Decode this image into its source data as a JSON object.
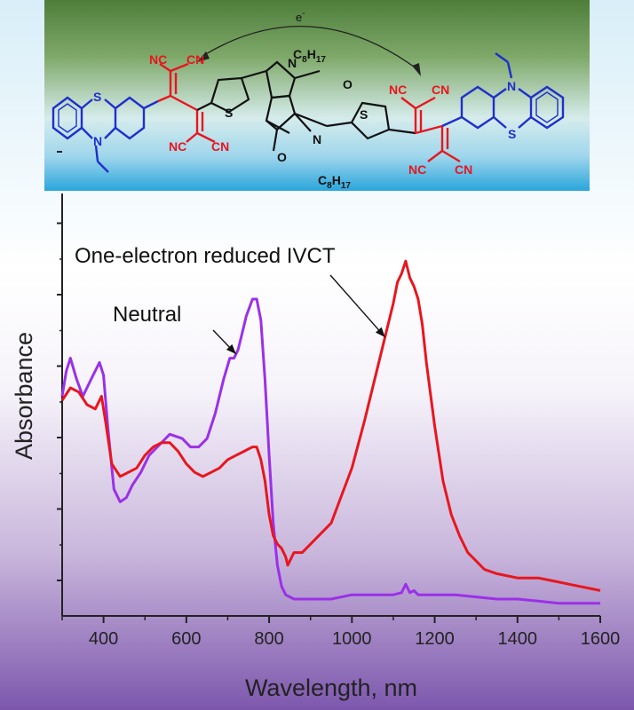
{
  "molecule": {
    "electron_label": "e",
    "electron_charge": "-",
    "labels_red": [
      "NC",
      "CN",
      "NC",
      "CN",
      "NC",
      "CN",
      "NC",
      "CN"
    ],
    "labels_black": [
      "N",
      "C",
      "8",
      "H",
      "17",
      "S",
      "S",
      "N",
      "C",
      "8",
      "H",
      "17",
      "O",
      "O"
    ],
    "labels_blue": [
      "S",
      "N",
      "N",
      "S"
    ]
  },
  "colors": {
    "neutral": "#9b30e8",
    "reduced": "#e8161e",
    "phenothiazine": "#1f2fcc",
    "acceptor": "#e8161e"
  },
  "chart_data": {
    "type": "line",
    "xlabel": "Wavelength, nm",
    "ylabel": "Absorbance",
    "xlim": [
      300,
      1600
    ],
    "ylim": [
      0,
      1
    ],
    "x_ticks": [
      400,
      600,
      800,
      1000,
      1200,
      1400,
      1600
    ],
    "y_ticks_labeled": false,
    "grid": false,
    "annotations": [
      {
        "text": "One-electron reduced IVCT",
        "points_to_series": "One-electron reduced",
        "at_x": 1080
      },
      {
        "text": "Neutral",
        "points_to_series": "Neutral",
        "at_x": 720
      }
    ],
    "series": [
      {
        "name": "Neutral",
        "x": [
          300,
          310,
          320,
          335,
          350,
          370,
          390,
          400,
          410,
          425,
          440,
          455,
          470,
          490,
          510,
          530,
          560,
          590,
          610,
          630,
          650,
          670,
          690,
          705,
          715,
          725,
          735,
          745,
          760,
          770,
          780,
          790,
          800,
          810,
          820,
          830,
          840,
          860,
          880,
          900,
          950,
          1000,
          1050,
          1100,
          1120,
          1130,
          1140,
          1150,
          1160,
          1200,
          1250,
          1300,
          1350,
          1400,
          1450,
          1500,
          1550,
          1600
        ],
        "y": [
          0.52,
          0.58,
          0.61,
          0.56,
          0.52,
          0.56,
          0.6,
          0.57,
          0.45,
          0.3,
          0.27,
          0.28,
          0.31,
          0.34,
          0.38,
          0.4,
          0.43,
          0.42,
          0.4,
          0.4,
          0.42,
          0.48,
          0.56,
          0.61,
          0.61,
          0.63,
          0.67,
          0.71,
          0.75,
          0.75,
          0.7,
          0.56,
          0.38,
          0.22,
          0.12,
          0.07,
          0.05,
          0.04,
          0.04,
          0.04,
          0.04,
          0.05,
          0.05,
          0.05,
          0.055,
          0.075,
          0.055,
          0.06,
          0.05,
          0.05,
          0.05,
          0.045,
          0.04,
          0.04,
          0.035,
          0.03,
          0.03,
          0.03
        ]
      },
      {
        "name": "One-electron reduced",
        "x": [
          300,
          320,
          340,
          360,
          380,
          395,
          405,
          420,
          440,
          460,
          480,
          500,
          520,
          540,
          560,
          580,
          600,
          620,
          640,
          660,
          680,
          700,
          720,
          740,
          760,
          770,
          780,
          790,
          800,
          810,
          820,
          830,
          840,
          845,
          850,
          860,
          880,
          900,
          950,
          1000,
          1030,
          1060,
          1080,
          1100,
          1110,
          1120,
          1130,
          1140,
          1150,
          1160,
          1170,
          1180,
          1200,
          1220,
          1240,
          1260,
          1280,
          1300,
          1320,
          1350,
          1400,
          1450,
          1500,
          1550,
          1600
        ],
        "y": [
          0.51,
          0.54,
          0.53,
          0.5,
          0.49,
          0.52,
          0.46,
          0.36,
          0.33,
          0.34,
          0.35,
          0.38,
          0.4,
          0.41,
          0.41,
          0.39,
          0.36,
          0.34,
          0.33,
          0.34,
          0.35,
          0.37,
          0.38,
          0.39,
          0.4,
          0.4,
          0.37,
          0.32,
          0.24,
          0.19,
          0.17,
          0.16,
          0.14,
          0.12,
          0.13,
          0.15,
          0.15,
          0.17,
          0.22,
          0.35,
          0.46,
          0.58,
          0.66,
          0.74,
          0.79,
          0.81,
          0.84,
          0.8,
          0.78,
          0.75,
          0.69,
          0.6,
          0.45,
          0.32,
          0.24,
          0.19,
          0.15,
          0.13,
          0.11,
          0.1,
          0.09,
          0.09,
          0.08,
          0.07,
          0.06
        ]
      }
    ]
  }
}
